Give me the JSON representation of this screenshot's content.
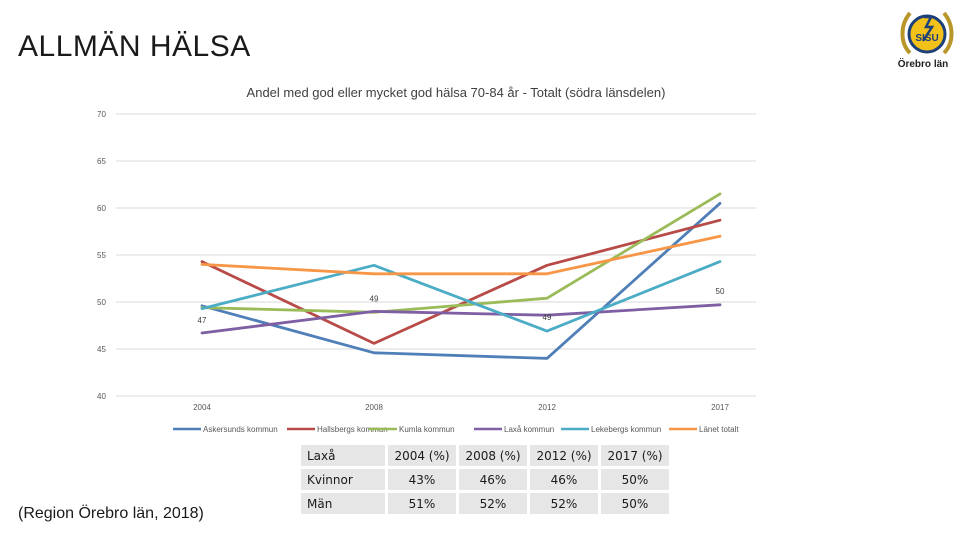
{
  "page": {
    "title": "ALLMÄN HÄLSA",
    "source": "(Region Örebro län, 2018)",
    "logo_text": "Örebro län",
    "logo_badge": "SISU"
  },
  "chart_data": {
    "type": "line",
    "title": "Andel med god eller mycket god hälsa 70-84 år - Totalt (södra länsdelen)",
    "xlabel": "",
    "ylabel": "",
    "categories": [
      "2004",
      "2008",
      "2012",
      "2017"
    ],
    "ylim": [
      40,
      70
    ],
    "yticks": [
      "70",
      "65",
      "60",
      "55",
      "50",
      "45",
      "40"
    ],
    "grid": true,
    "legend_position": "bottom",
    "series": [
      {
        "name": "Askersunds kommun",
        "color": "#4f7fb8",
        "values": [
          49.6,
          44.6,
          44.0,
          60.5
        ]
      },
      {
        "name": "Hallsbergs kommun",
        "color": "#b84b47",
        "values": [
          54.3,
          45.6,
          53.9,
          58.7
        ]
      },
      {
        "name": "Kumla kommun",
        "color": "#9bbb59",
        "values": [
          49.4,
          48.9,
          50.4,
          61.5
        ]
      },
      {
        "name": "Laxå kommun",
        "color": "#7e5fa3",
        "values": [
          46.7,
          49.0,
          48.6,
          49.7
        ]
      },
      {
        "name": "Lekebergs kommun",
        "color": "#4bacc6",
        "values": [
          49.3,
          53.9,
          46.9,
          54.3
        ]
      },
      {
        "name": "Länet totalt",
        "color": "#f79646",
        "values": [
          54.0,
          53.0,
          53.0,
          57.0
        ]
      }
    ],
    "data_labels": [
      {
        "series": "Laxå kommun",
        "category": "2004",
        "text": "47"
      },
      {
        "series": "Laxå kommun",
        "category": "2008",
        "text": "49"
      },
      {
        "series": "Laxå kommun",
        "category": "2012",
        "text": "49"
      },
      {
        "series": "Laxå kommun",
        "category": "2017",
        "text": "50"
      }
    ]
  },
  "table": {
    "headers": [
      "Laxå",
      "2004 (%)",
      "2008 (%)",
      "2012 (%)",
      "2017 (%)"
    ],
    "rows": [
      [
        "Kvinnor",
        "43%",
        "46%",
        "46%",
        "50%"
      ],
      [
        "Män",
        "51%",
        "52%",
        "52%",
        "50%"
      ]
    ]
  }
}
